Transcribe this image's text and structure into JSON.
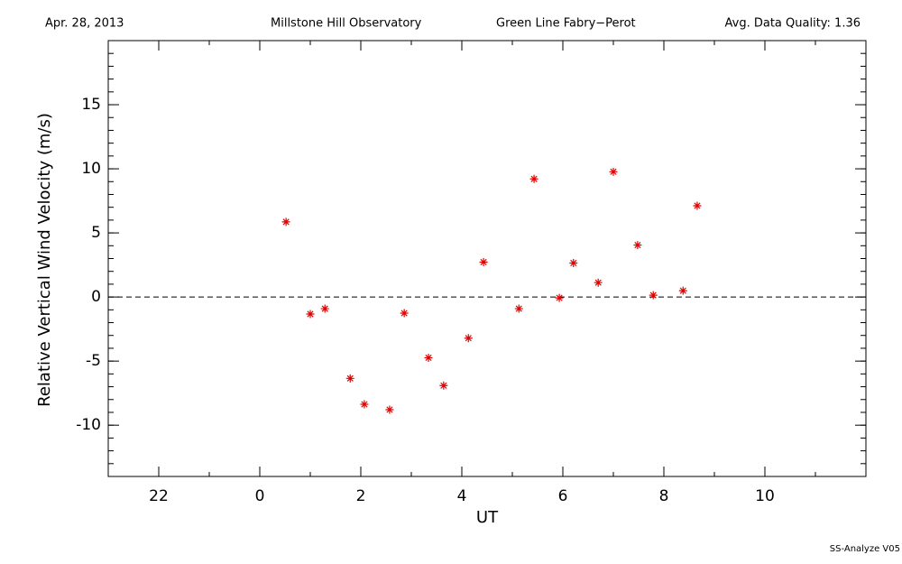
{
  "chart_data": {
    "type": "scatter",
    "header": [
      "Apr. 28, 2013",
      "Millstone Hill Observatory",
      "Green Line Fabry−Perot",
      "Avg. Data Quality: 1.36"
    ],
    "xlabel": "UT",
    "ylabel": "Relative Vertical Wind Velocity (m/s)",
    "footer": "SS-Analyze V05",
    "x": [
      0.52,
      1.0,
      1.29,
      1.79,
      2.07,
      2.57,
      2.86,
      3.34,
      3.64,
      4.13,
      4.43,
      5.13,
      5.43,
      5.93,
      6.21,
      6.7,
      7.0,
      7.48,
      7.79,
      8.38,
      8.66
    ],
    "values": [
      5.86,
      -1.33,
      -0.91,
      -6.35,
      -8.37,
      -8.79,
      -1.26,
      -4.74,
      -6.91,
      -3.21,
      2.72,
      -0.91,
      9.21,
      -0.07,
      2.65,
      1.12,
      9.77,
      4.05,
      0.14,
      0.49,
      7.12
    ],
    "color": "#e00000",
    "xlim": [
      -3,
      12
    ],
    "ylim": [
      -14,
      20
    ],
    "xticks": [
      {
        "value": -2,
        "label": "22"
      },
      0,
      2,
      4,
      6,
      8,
      10
    ],
    "yticks": [
      -10,
      -5,
      0,
      5,
      10,
      15
    ],
    "reference_line": 0
  }
}
